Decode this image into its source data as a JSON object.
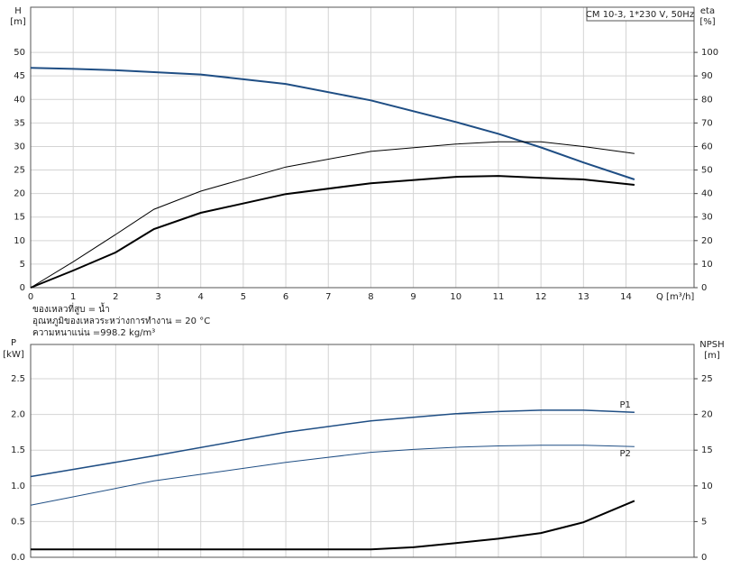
{
  "chart_data": [
    {
      "type": "line",
      "title": "CM 10-3, 1*230 V, 50Hz",
      "y_label": "H",
      "y_unit": "[m]",
      "y2_label": "eta",
      "y2_unit": "[%]",
      "x_label": "Q [m³/h]",
      "x": [
        0,
        1,
        2,
        2.9,
        4,
        6,
        8,
        10,
        11,
        12,
        13,
        14.2
      ],
      "xlim": [
        0,
        15.6
      ],
      "xticks": [
        0,
        1,
        2,
        3,
        4,
        5,
        6,
        7,
        8,
        9,
        10,
        11,
        12,
        13,
        14
      ],
      "ylim": [
        0,
        59.6
      ],
      "yticks": [
        0,
        5,
        10,
        15,
        20,
        25,
        30,
        35,
        40,
        45,
        50
      ],
      "y2lim": [
        0,
        119.2
      ],
      "y2ticks": [
        0,
        10,
        20,
        30,
        40,
        50,
        60,
        70,
        80,
        90,
        100
      ],
      "grid": true,
      "series": [
        {
          "color": "#1f4e84",
          "linewidth": 2,
          "axis": "y",
          "values": [
            46.7,
            46.5,
            46.2,
            45.8,
            45.3,
            43.3,
            39.8,
            35.2,
            32.7,
            29.8,
            26.6,
            23
          ]
        },
        {
          "color": "#000000",
          "linewidth": 1,
          "axis": "y2",
          "values": [
            0,
            11,
            22.6,
            33.3,
            41,
            51.3,
            57.9,
            61,
            62,
            62,
            60,
            57
          ]
        },
        {
          "color": "#000000",
          "linewidth": 2,
          "axis": "y2",
          "values": [
            0,
            7.3,
            15,
            24.9,
            31.8,
            39.8,
            44.4,
            47.1,
            47.5,
            46.7,
            46,
            43.7
          ]
        }
      ],
      "notes": [
        "ของเหลวที่สูบ = น้ำ",
        "อุณหภูมิของเหลวระหว่างการทำงาน = 20 °C",
        "ความหนาแน่น =998.2 kg/m³"
      ]
    },
    {
      "type": "line",
      "y_label": "P",
      "y_unit": "[kW]",
      "y2_label": "NPSH",
      "y2_unit": "[m]",
      "x": [
        0,
        2.9,
        6,
        8,
        9,
        10,
        11,
        12,
        13,
        14.2
      ],
      "xlim": [
        0,
        15.6
      ],
      "ylim": [
        0,
        2.98
      ],
      "yticks": [
        {
          "value": 0,
          "label": "0.0"
        },
        0.5,
        {
          "value": 1,
          "label": "1.0"
        },
        1.5,
        {
          "value": 2,
          "label": "2.0"
        },
        2.5
      ],
      "y2lim": [
        0,
        29.8
      ],
      "y2ticks": [
        0,
        5,
        10,
        15,
        20,
        25
      ],
      "grid": true,
      "series": [
        {
          "name": "P1",
          "color": "#1f4e84",
          "linewidth": 1.5,
          "axis": "y",
          "values": [
            1.13,
            1.42,
            1.75,
            1.91,
            1.96,
            2.01,
            2.04,
            2.06,
            2.06,
            2.03
          ]
        },
        {
          "name": "P2",
          "color": "#1f4e84",
          "linewidth": 1,
          "axis": "y",
          "values": [
            0.73,
            1.07,
            1.33,
            1.47,
            1.51,
            1.54,
            1.56,
            1.57,
            1.57,
            1.55
          ]
        },
        {
          "color": "#000000",
          "linewidth": 2,
          "axis": "y2",
          "values": [
            1.1,
            1.1,
            1.1,
            1.1,
            1.4,
            2.0,
            2.6,
            3.4,
            4.9,
            7.9
          ]
        }
      ]
    }
  ]
}
